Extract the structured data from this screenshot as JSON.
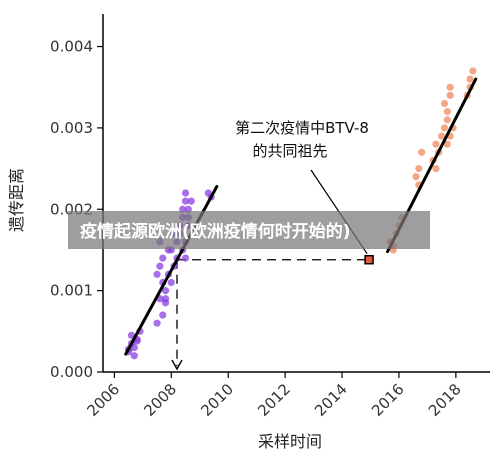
{
  "overlay": {
    "title": "疫情起源欧洲(欧洲疫情何时开始的)"
  },
  "chart_data": {
    "type": "scatter",
    "title": "",
    "xlabel": "采样时间",
    "ylabel": "遗传距离",
    "xlim": [
      2005.6,
      2019.2
    ],
    "ylim": [
      0,
      0.0044
    ],
    "x_ticks": [
      2006,
      2008,
      2010,
      2012,
      2014,
      2016,
      2018
    ],
    "x_tick_labels": [
      "2006",
      "2008",
      "2010",
      "2012",
      "2014",
      "2016",
      "2018"
    ],
    "y_ticks": [
      0,
      0.001,
      0.002,
      0.003,
      0.004
    ],
    "y_tick_labels": [
      "0.000",
      "0.001",
      "0.002",
      "0.003",
      "0.004"
    ],
    "grid": false,
    "colors": {
      "purple": "#8a3fe0",
      "orange": "#f08a5d",
      "line": "#000000",
      "ancestor": "#e05a3a"
    },
    "series": [
      {
        "color": "#8a3fe0",
        "x": [
          2006.5,
          2006.6,
          2006.7,
          2006.6,
          2006.8,
          2006.9,
          2006.7,
          2006.5,
          2006.8,
          2007.5,
          2007.6,
          2007.7,
          2007.5,
          2007.8,
          2007.7,
          2007.6,
          2007.9,
          2008.0,
          2007.8,
          2007.7,
          2007.6,
          2007.9,
          2008.1,
          2008.0,
          2008.2,
          2008.1,
          2007.8,
          2008.2,
          2008.3,
          2008.4,
          2008.5,
          2008.4,
          2008.3,
          2008.5,
          2008.6,
          2008.4,
          2008.5,
          2008.6,
          2008.7,
          2008.5,
          2008.6,
          2009.3,
          2009.4
        ],
        "y": [
          0.00025,
          0.00035,
          0.0003,
          0.00045,
          0.0004,
          0.0005,
          0.0002,
          0.00028,
          0.00038,
          0.0006,
          0.0009,
          0.0011,
          0.0012,
          0.001,
          0.0007,
          0.0013,
          0.0015,
          0.0011,
          0.00085,
          0.0014,
          0.0016,
          0.0012,
          0.0013,
          0.0015,
          0.0014,
          0.0017,
          0.0009,
          0.0016,
          0.0018,
          0.0019,
          0.0021,
          0.002,
          0.0017,
          0.0022,
          0.0019,
          0.0015,
          0.0016,
          0.002,
          0.0021,
          0.0014,
          0.0018,
          0.0022,
          0.00215
        ]
      },
      {
        "color": "#f08a5d",
        "x": [
          2015.7,
          2015.8,
          2015.9,
          2015.8,
          2015.7,
          2016.0,
          2016.1,
          2016.6,
          2016.7,
          2016.8,
          2016.7,
          2017.2,
          2017.3,
          2017.4,
          2017.5,
          2017.3,
          2017.6,
          2017.7,
          2017.6,
          2017.8,
          2017.7,
          2017.8,
          2017.9,
          2017.7,
          2017.8,
          2018.4,
          2018.5,
          2018.6,
          2018.5
        ],
        "y": [
          0.0016,
          0.00155,
          0.0017,
          0.0015,
          0.0016,
          0.0018,
          0.0019,
          0.0024,
          0.0025,
          0.0027,
          0.0023,
          0.0026,
          0.0028,
          0.0027,
          0.0029,
          0.0025,
          0.003,
          0.0031,
          0.0033,
          0.0029,
          0.0032,
          0.0034,
          0.003,
          0.0028,
          0.0035,
          0.0034,
          0.0035,
          0.0037,
          0.0036
        ]
      }
    ],
    "regression_lines": [
      {
        "x": [
          2006.4,
          2009.6
        ],
        "y": [
          0.00022,
          0.00228
        ]
      },
      {
        "x": [
          2015.6,
          2018.7
        ],
        "y": [
          0.00148,
          0.0036
        ]
      }
    ],
    "ancestor": {
      "x": 2014.95,
      "y": 0.00138
    },
    "ancestor_projection": {
      "x": 2008.2,
      "y": 0.00138
    },
    "annotation": {
      "lines": [
        "第二次疫情中BTV-8",
        "的共同祖先"
      ]
    }
  }
}
